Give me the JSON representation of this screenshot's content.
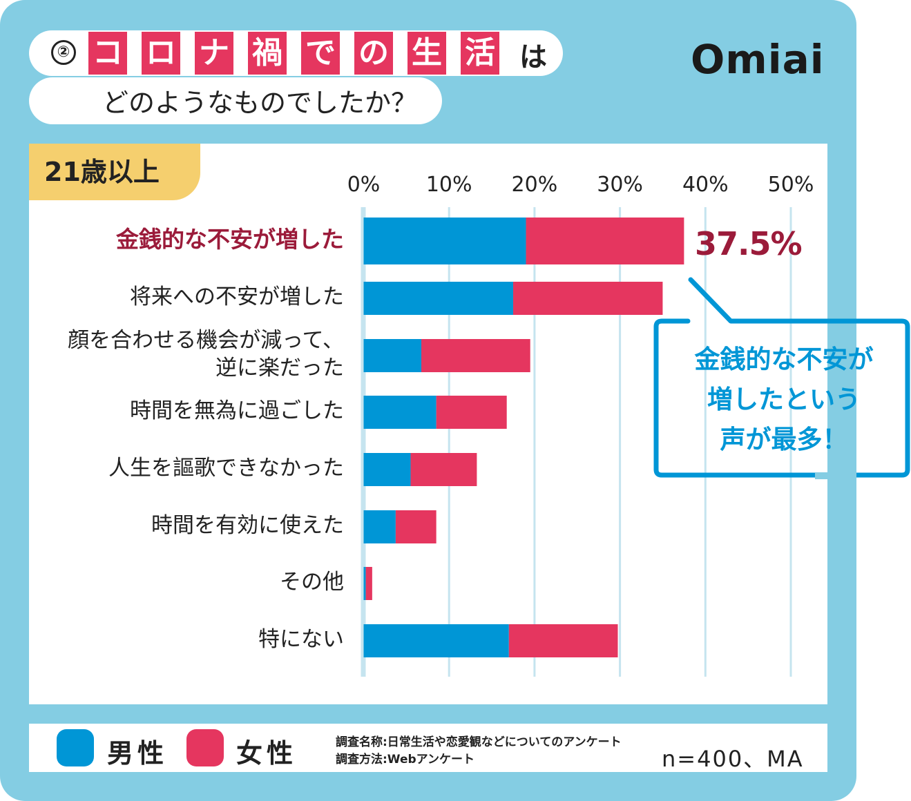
{
  "title": {
    "number": "②",
    "highlight_chars": [
      "コ",
      "ロ",
      "ナ",
      "禍",
      "で",
      "の",
      "生",
      "活"
    ],
    "suffix": "は",
    "subtitle": "どのようなものでしたか？"
  },
  "logo": "Omiai",
  "age_group": "21歳以上",
  "callout": {
    "lines": [
      "金銭的な不安が",
      "増したという",
      "声が最多！"
    ]
  },
  "legend": {
    "male": "男性",
    "female": "女性"
  },
  "survey": {
    "name": "調査名称:日常生活や恋愛観などについてのアンケート",
    "method": "調査方法:Webアンケート",
    "sample": "n=400、MA"
  },
  "colors": {
    "male": "#0096d6",
    "female": "#e5365f",
    "highlight": "#9b1b3a",
    "background": "#84cde3"
  },
  "chart_data": {
    "type": "bar",
    "orientation": "horizontal",
    "stacked": true,
    "categories": [
      "金銭的な不安が増した",
      "将来への不安が増した",
      "顔を合わせる機会が減って、\n逆に楽だった",
      "時間を無為に過ごした",
      "人生を謳歌できなかった",
      "時間を有効に使えた",
      "その他",
      "特にない"
    ],
    "series": [
      {
        "name": "男性",
        "values": [
          19.0,
          17.5,
          6.75,
          8.5,
          5.5,
          3.75,
          0.25,
          17.0
        ]
      },
      {
        "name": "女性",
        "values": [
          18.5,
          17.5,
          12.75,
          8.25,
          7.75,
          4.75,
          0.75,
          12.75
        ]
      }
    ],
    "xlim": [
      0,
      50
    ],
    "xticks": [
      "0%",
      "10%",
      "20%",
      "30%",
      "40%",
      "50%"
    ],
    "grid": true,
    "highlight_value_label": "37.5%",
    "legend_position": "bottom-left"
  }
}
